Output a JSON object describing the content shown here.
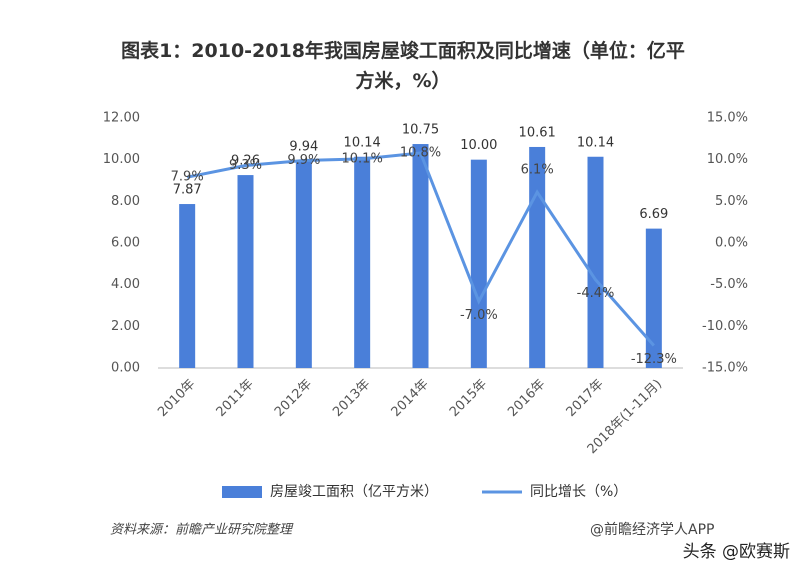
{
  "chart_data": {
    "type": "combo",
    "title": "图表1：2010-2018年我国房屋竣工面积及同比增速（单位：亿平方米，%）",
    "categories": [
      "2010年",
      "2011年",
      "2012年",
      "2013年",
      "2014年",
      "2015年",
      "2016年",
      "2017年",
      "2018年(1-11月)"
    ],
    "series": [
      {
        "name": "房屋竣工面积（亿平方米）",
        "type": "bar",
        "color": "#4a7fd9",
        "values": [
          7.87,
          9.26,
          9.94,
          10.14,
          10.75,
          10.0,
          10.61,
          10.14,
          6.69
        ],
        "value_labels": [
          "7.87",
          "9.26",
          "9.94",
          "10.14",
          "10.75",
          "10.00",
          "10.61",
          "10.14",
          "6.69"
        ]
      },
      {
        "name": "同比增长（%）",
        "type": "line",
        "axis": "y2",
        "color": "#5b94e2",
        "values": [
          7.9,
          9.3,
          9.9,
          10.1,
          10.8,
          -7.0,
          6.1,
          -4.4,
          -12.3
        ],
        "value_labels": [
          "7.9%",
          "9.3%",
          "9.9%",
          "10.1%",
          "10.8%",
          "-7.0%",
          "6.1%",
          "-4.4%",
          "-12.3%"
        ]
      }
    ],
    "ylim": [
      0,
      12
    ],
    "yticks": [
      {
        "value": 0,
        "label": "0.00"
      },
      {
        "value": 2,
        "label": "2.00"
      },
      {
        "value": 4,
        "label": "4.00"
      },
      {
        "value": 6,
        "label": "6.00"
      },
      {
        "value": 8,
        "label": "8.00"
      },
      {
        "value": 10,
        "label": "10.00"
      },
      {
        "value": 12,
        "label": "12.00"
      }
    ],
    "y2lim": [
      -15,
      15
    ],
    "y2ticks": [
      {
        "value": -15,
        "label": "-15.0%"
      },
      {
        "value": -10,
        "label": "-10.0%"
      },
      {
        "value": -5,
        "label": "-5.0%"
      },
      {
        "value": 0,
        "label": "0.0%"
      },
      {
        "value": 5,
        "label": "5.0%"
      },
      {
        "value": 10,
        "label": "10.0%"
      },
      {
        "value": 15,
        "label": "15.0%"
      }
    ],
    "legend": "bottom",
    "source": "资料来源：前瞻产业研究院整理",
    "credit": "@前瞻经济学人APP",
    "watermark": "头条 @欧赛斯"
  }
}
